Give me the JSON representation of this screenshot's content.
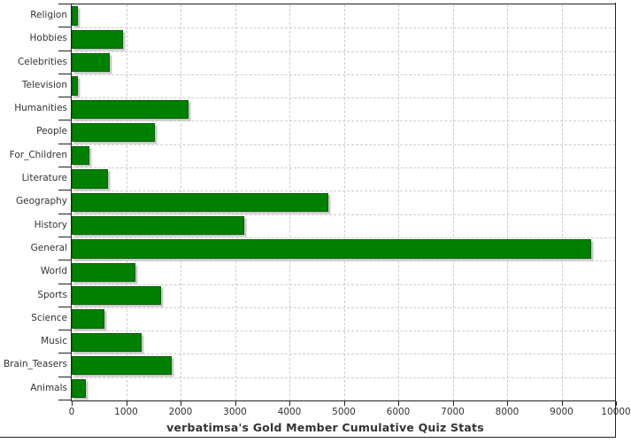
{
  "chart_data": {
    "type": "bar",
    "orientation": "horizontal",
    "title": "verbatimsa's Gold Member Cumulative Quiz Stats",
    "categories": [
      "Religion",
      "Hobbies",
      "Celebrities",
      "Television",
      "Humanities",
      "People",
      "For_Children",
      "Literature",
      "Geography",
      "History",
      "General",
      "World",
      "Sports",
      "Science",
      "Music",
      "Brain_Teasers",
      "Animals"
    ],
    "values": [
      115,
      950,
      705,
      120,
      2150,
      1530,
      320,
      670,
      4715,
      3165,
      9540,
      1165,
      1650,
      605,
      1285,
      1830,
      255
    ],
    "xlabel": "",
    "ylabel": "",
    "xlim": [
      0,
      10000
    ],
    "x_tick_step": 1000,
    "x_tick_labels": [
      "0",
      "1000",
      "2000",
      "3000",
      "4000",
      "5000",
      "6000",
      "7000",
      "8000",
      "9000",
      "10000"
    ],
    "grid": true,
    "legend": "none",
    "bar_color": "#008000",
    "bar_border_color": "#005e00",
    "bar_shadow_color": "#c8c8c8",
    "grid_color": "#cccccc",
    "axis_color": "#222222",
    "text_color": "#333333"
  }
}
